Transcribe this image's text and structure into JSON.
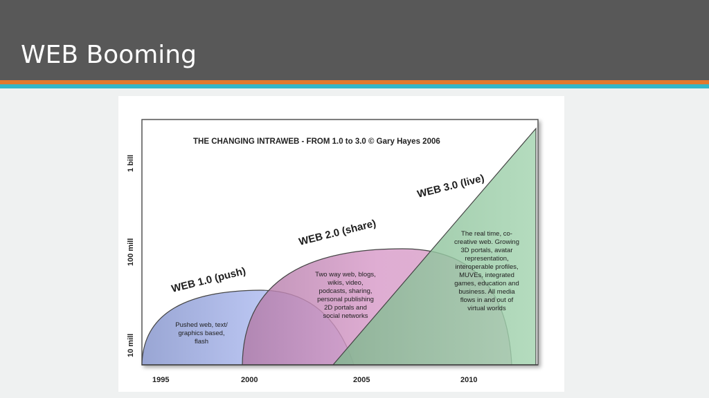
{
  "slide": {
    "title": "WEB Booming"
  },
  "diagram": {
    "title": "THE CHANGING INTRAWEB - FROM 1.0 to 3.0 © Gary Hayes 2006",
    "y_axis_labels": [
      "10 mill",
      "100 mill",
      "1 bill"
    ],
    "x_axis_labels": [
      "1995",
      "2000",
      "2005",
      "2010"
    ],
    "phases": [
      {
        "name": "WEB 1.0 (push)",
        "description": [
          "Pushed web, text/",
          "graphics based,",
          "flash"
        ],
        "color": "#a9b6ec"
      },
      {
        "name": "WEB 2.0 (share)",
        "description": [
          "Two way web, blogs,",
          "wikis, video,",
          "podcasts, sharing,",
          "personal publishing",
          "2D portals and",
          "social networks"
        ],
        "color": "#cf93bf"
      },
      {
        "name": "WEB 3.0 (live)",
        "description": [
          "The real time, co-",
          "creative web. Growing",
          "3D portals, avatar",
          "representation,",
          "interoperable profiles,",
          "MUVEs, integrated",
          "games, education and",
          "business. All media",
          "flows in and out of",
          "virtual worlds"
        ],
        "color": "#94c9a2"
      }
    ]
  }
}
